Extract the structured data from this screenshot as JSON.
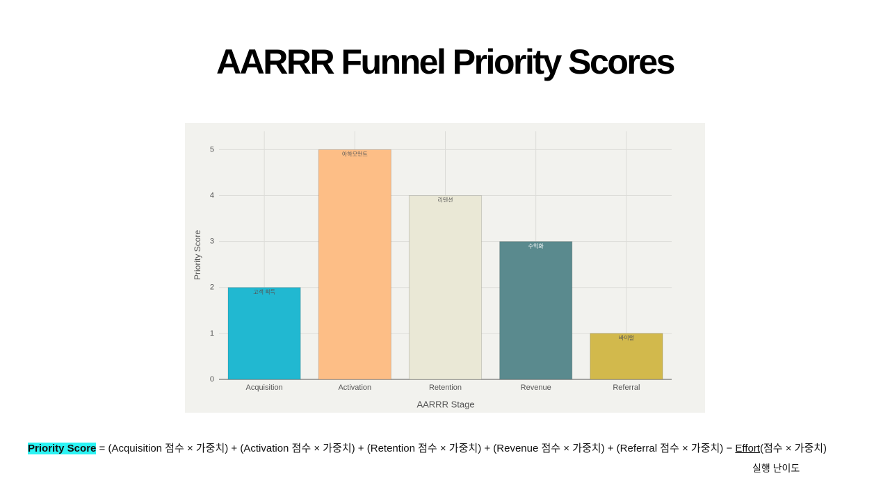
{
  "title": "AARRR Funnel Priority Scores",
  "chart_data": {
    "type": "bar",
    "categories": [
      "Acquisition",
      "Activation",
      "Retention",
      "Revenue",
      "Referral"
    ],
    "values": [
      2,
      5,
      4,
      3,
      1
    ],
    "colors": [
      "#21b8d1",
      "#fdbe86",
      "#eae8d6",
      "#5a8a8e",
      "#d2b94c"
    ],
    "annotations": [
      "고객 획득",
      "아하모먼트",
      "리텐션",
      "수익화",
      "바이럴"
    ],
    "annotation_colors": [
      "#555555",
      "#555555",
      "#555555",
      "#ffffff",
      "#555555"
    ],
    "x_label": "AARRR Stage",
    "y_label": "Priority Score",
    "ylim": [
      0,
      5.4
    ],
    "yticks": [
      0,
      1,
      2,
      3,
      4,
      5
    ],
    "grid": true
  },
  "formula": {
    "highlight": "Priority Score",
    "text": " = (Acquisition 점수 × 가중치) + (Activation 점수 × 가중치) + (Retention 점수 × 가중치) + (Revenue 점수 × 가중치) + (Referral 점수 × 가중치) − ",
    "underlined": "Effort",
    "tail": "(점수 × 가중치)",
    "note": "실행 난이도"
  }
}
